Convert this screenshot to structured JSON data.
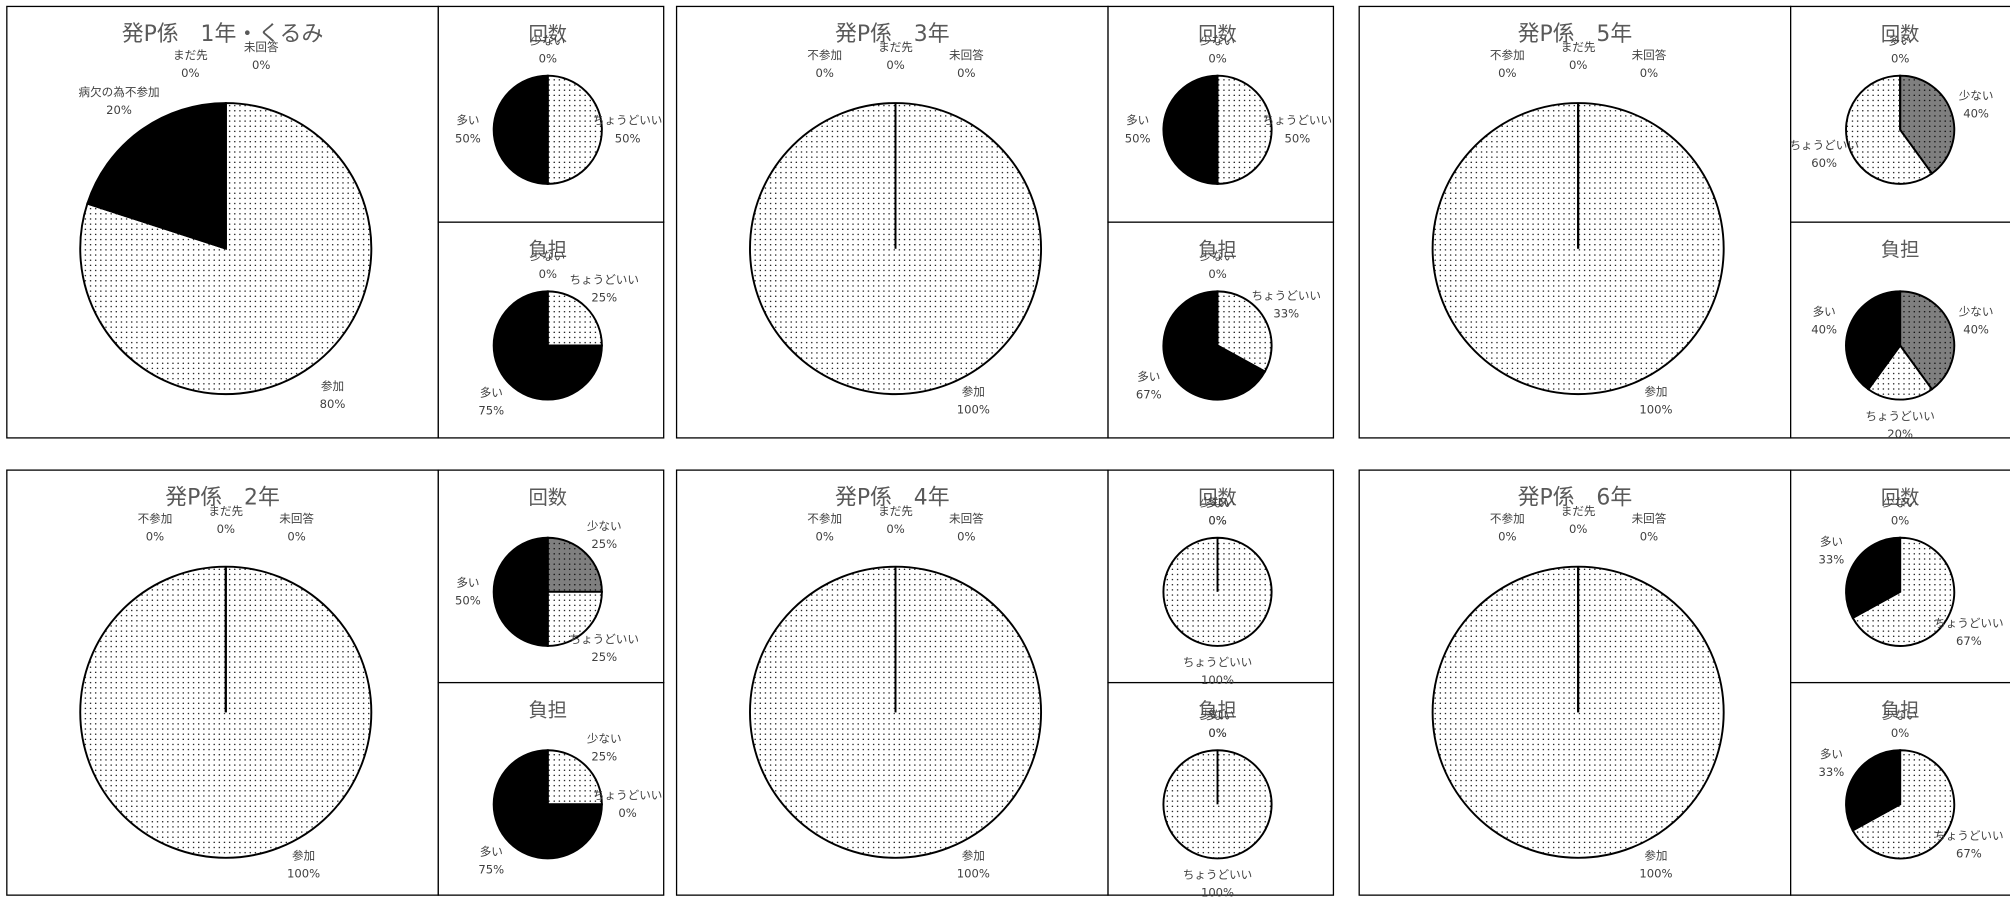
{
  "chart_data": [
    {
      "type": "pie",
      "title": "発P係　1年・くるみ",
      "categories": [
        "参加",
        "病欠の為不参加",
        "まだ先",
        "未回答"
      ],
      "values": [
        80,
        20,
        0,
        0
      ],
      "value_labels": [
        "80%",
        "20%",
        "0%",
        "0%"
      ],
      "colors": [
        "#ffffff",
        "#000000",
        "#ffffff",
        "#ffffff"
      ]
    },
    {
      "type": "pie",
      "title": "回数",
      "categories": [
        "少ない",
        "ちょうどいい",
        "多い"
      ],
      "values": [
        0,
        50,
        50
      ],
      "value_labels": [
        "0%",
        "50%",
        "50%"
      ],
      "colors": [
        "#7f7f7f",
        "#ffffff",
        "#000000"
      ]
    },
    {
      "type": "pie",
      "title": "負担",
      "categories": [
        "少ない",
        "ちょうどいい",
        "多い"
      ],
      "values": [
        0,
        25,
        75
      ],
      "value_labels": [
        "0%",
        "25%",
        "75%"
      ],
      "colors": [
        "#7f7f7f",
        "#ffffff",
        "#000000"
      ]
    },
    {
      "type": "pie",
      "title": "発P係　3年",
      "categories": [
        "参加",
        "不参加",
        "まだ先",
        "未回答"
      ],
      "values": [
        100,
        0,
        0,
        0
      ],
      "value_labels": [
        "100%",
        "0%",
        "0%",
        "0%"
      ],
      "colors": [
        "#ffffff",
        "#000000",
        "#ffffff",
        "#ffffff"
      ]
    },
    {
      "type": "pie",
      "title": "回数",
      "categories": [
        "少ない",
        "ちょうどいい",
        "多い"
      ],
      "values": [
        0,
        50,
        50
      ],
      "value_labels": [
        "0%",
        "50%",
        "50%"
      ],
      "colors": [
        "#7f7f7f",
        "#ffffff",
        "#000000"
      ]
    },
    {
      "type": "pie",
      "title": "負担",
      "categories": [
        "少ない",
        "ちょうどいい",
        "多い"
      ],
      "values": [
        0,
        33,
        67
      ],
      "value_labels": [
        "0%",
        "33%",
        "67%"
      ],
      "colors": [
        "#7f7f7f",
        "#ffffff",
        "#000000"
      ]
    },
    {
      "type": "pie",
      "title": "発P係　5年",
      "categories": [
        "参加",
        "不参加",
        "まだ先",
        "未回答"
      ],
      "values": [
        100,
        0,
        0,
        0
      ],
      "value_labels": [
        "100%",
        "0%",
        "0%",
        "0%"
      ],
      "colors": [
        "#ffffff",
        "#000000",
        "#ffffff",
        "#ffffff"
      ]
    },
    {
      "type": "pie",
      "title": "回数",
      "categories": [
        "少ない",
        "ちょうどいい",
        "多い"
      ],
      "values": [
        40,
        60,
        0
      ],
      "value_labels": [
        "40%",
        "60%",
        "0%"
      ],
      "colors": [
        "#7f7f7f",
        "#ffffff",
        "#000000"
      ]
    },
    {
      "type": "pie",
      "title": "負担",
      "categories": [
        "少ない",
        "ちょうどいい",
        "多い"
      ],
      "values": [
        40,
        20,
        40
      ],
      "value_labels": [
        "40%",
        "20%",
        "40%"
      ],
      "colors": [
        "#7f7f7f",
        "#ffffff",
        "#000000"
      ]
    },
    {
      "type": "pie",
      "title": "発P係　2年",
      "categories": [
        "参加",
        "不参加",
        "まだ先",
        "未回答"
      ],
      "values": [
        100,
        0,
        0,
        0
      ],
      "value_labels": [
        "100%",
        "0%",
        "0%",
        "0%"
      ],
      "colors": [
        "#ffffff",
        "#000000",
        "#ffffff",
        "#ffffff"
      ]
    },
    {
      "type": "pie",
      "title": "回数",
      "categories": [
        "少ない",
        "ちょうどいい",
        "多い"
      ],
      "values": [
        25,
        25,
        50
      ],
      "value_labels": [
        "25%",
        "25%",
        "50%"
      ],
      "colors": [
        "#7f7f7f",
        "#ffffff",
        "#000000"
      ]
    },
    {
      "type": "pie",
      "title": "負担",
      "categories": [
        "少ない",
        "ちょうどいい",
        "多い"
      ],
      "values": [
        25,
        0,
        75
      ],
      "value_labels": [
        "25%",
        "0%",
        "75%"
      ],
      "colors": [
        "#ffffff",
        "#ffffff",
        "#000000"
      ]
    },
    {
      "type": "pie",
      "title": "発P係　4年",
      "categories": [
        "参加",
        "不参加",
        "まだ先",
        "未回答"
      ],
      "values": [
        100,
        0,
        0,
        0
      ],
      "value_labels": [
        "100%",
        "0%",
        "0%",
        "0%"
      ],
      "colors": [
        "#ffffff",
        "#000000",
        "#ffffff",
        "#ffffff"
      ]
    },
    {
      "type": "pie",
      "title": "回数",
      "categories": [
        "少ない",
        "ちょうどいい",
        "多い"
      ],
      "values": [
        0,
        100,
        0
      ],
      "value_labels": [
        "0%",
        "100%",
        "0%"
      ],
      "colors": [
        "#7f7f7f",
        "#ffffff",
        "#000000"
      ]
    },
    {
      "type": "pie",
      "title": "負担",
      "categories": [
        "少ない",
        "ちょうどいい",
        "多い"
      ],
      "values": [
        0,
        100,
        0
      ],
      "value_labels": [
        "0%",
        "100%",
        "0%"
      ],
      "colors": [
        "#7f7f7f",
        "#ffffff",
        "#000000"
      ]
    },
    {
      "type": "pie",
      "title": "発P係　6年",
      "categories": [
        "参加",
        "不参加",
        "まだ先",
        "未回答"
      ],
      "values": [
        100,
        0,
        0,
        0
      ],
      "value_labels": [
        "100%",
        "0%",
        "0%",
        "0%"
      ],
      "colors": [
        "#ffffff",
        "#000000",
        "#ffffff",
        "#ffffff"
      ]
    },
    {
      "type": "pie",
      "title": "回数",
      "categories": [
        "少ない",
        "ちょうどいい",
        "多い"
      ],
      "values": [
        0,
        67,
        33
      ],
      "value_labels": [
        "0%",
        "67%",
        "33%"
      ],
      "colors": [
        "#7f7f7f",
        "#ffffff",
        "#000000"
      ]
    },
    {
      "type": "pie",
      "title": "負担",
      "categories": [
        "少ない",
        "ちょうどいい",
        "多い"
      ],
      "values": [
        0,
        67,
        33
      ],
      "value_labels": [
        "0%",
        "67%",
        "33%"
      ],
      "colors": [
        "#7f7f7f",
        "#ffffff",
        "#000000"
      ]
    }
  ]
}
